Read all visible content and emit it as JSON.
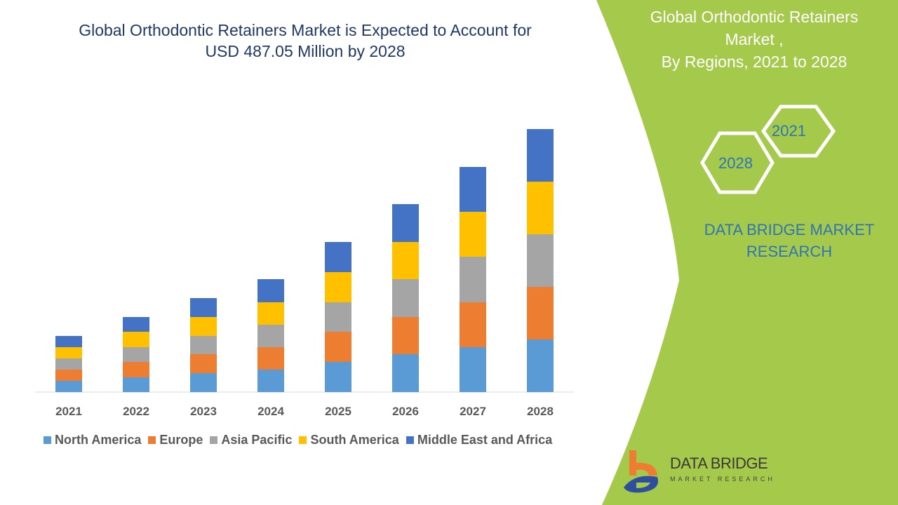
{
  "header": {
    "title_line1": "Global Orthodontic Retainers Market is Expected to Account for",
    "title_line2": "USD 487.05 Million by 2028"
  },
  "side_panel": {
    "title_line1": "Global Orthodontic Retainers",
    "title_line2": "Market ,",
    "title_line3": "By Regions, 2021 to 2028",
    "hex_top": "2021",
    "hex_bottom": "2028",
    "brand_line1": "DATA BRIDGE MARKET",
    "brand_line2": "RESEARCH",
    "logo_text": "DATA BRIDGE",
    "logo_sub": "MARKET RESEARCH",
    "panel_color": "#a5c94a"
  },
  "chart_data": {
    "type": "stacked-bar",
    "title": "Global Orthodontic Retainers Market is Expected to Account for USD 487.05 Million by 2028",
    "categories": [
      "2021",
      "2022",
      "2023",
      "2024",
      "2025",
      "2026",
      "2027",
      "2028"
    ],
    "y_axis_shown": false,
    "grid": false,
    "legend_position": "bottom",
    "series": [
      {
        "name": "North America",
        "color": "#5b9bd5",
        "values": [
          16,
          21,
          27,
          32,
          43,
          54,
          64,
          75
        ]
      },
      {
        "name": "Europe",
        "color": "#ed7d31",
        "values": [
          16,
          22,
          27,
          32,
          43,
          53,
          64,
          75
        ]
      },
      {
        "name": "Asia Pacific",
        "color": "#a5a5a5",
        "values": [
          16,
          21,
          26,
          32,
          42,
          54,
          65,
          75
        ]
      },
      {
        "name": "South America",
        "color": "#ffc000",
        "values": [
          16,
          22,
          27,
          32,
          43,
          53,
          64,
          75
        ]
      },
      {
        "name": "Middle East and Africa",
        "color": "#4472c4",
        "values": [
          16,
          21,
          27,
          33,
          43,
          54,
          64,
          75
        ]
      }
    ]
  }
}
